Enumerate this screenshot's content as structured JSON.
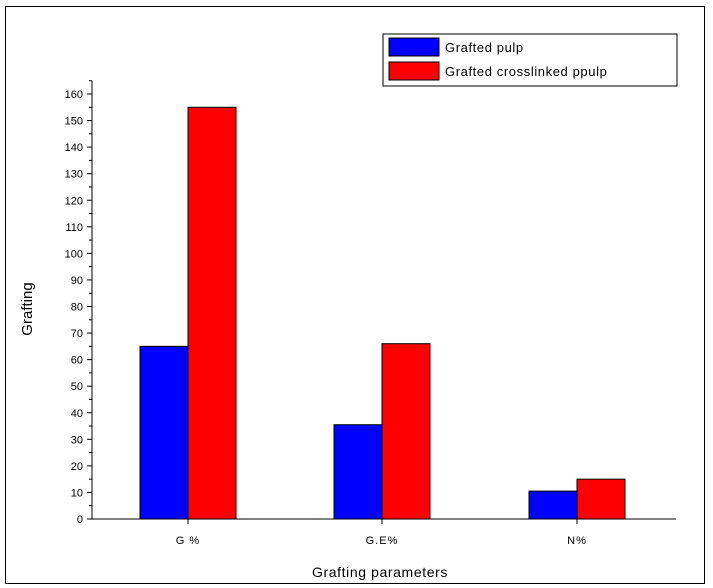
{
  "chart_data": {
    "type": "bar",
    "title": "",
    "xlabel": "Grafting parameters",
    "ylabel": "Grafting",
    "categories": [
      "G %",
      "G.E%",
      "N%"
    ],
    "ylim": [
      0,
      165
    ],
    "yticks": [
      0,
      10,
      20,
      30,
      40,
      50,
      60,
      70,
      80,
      90,
      100,
      110,
      120,
      130,
      140,
      150,
      160
    ],
    "grid": false,
    "legend_position": "top-right",
    "series": [
      {
        "name": "Grafted pulp",
        "color": "#0000ff",
        "values": [
          65,
          35.5,
          10.5
        ]
      },
      {
        "name": "Grafted crosslinked ppulp",
        "color": "#ff0000",
        "values": [
          155,
          66,
          15
        ]
      }
    ]
  }
}
